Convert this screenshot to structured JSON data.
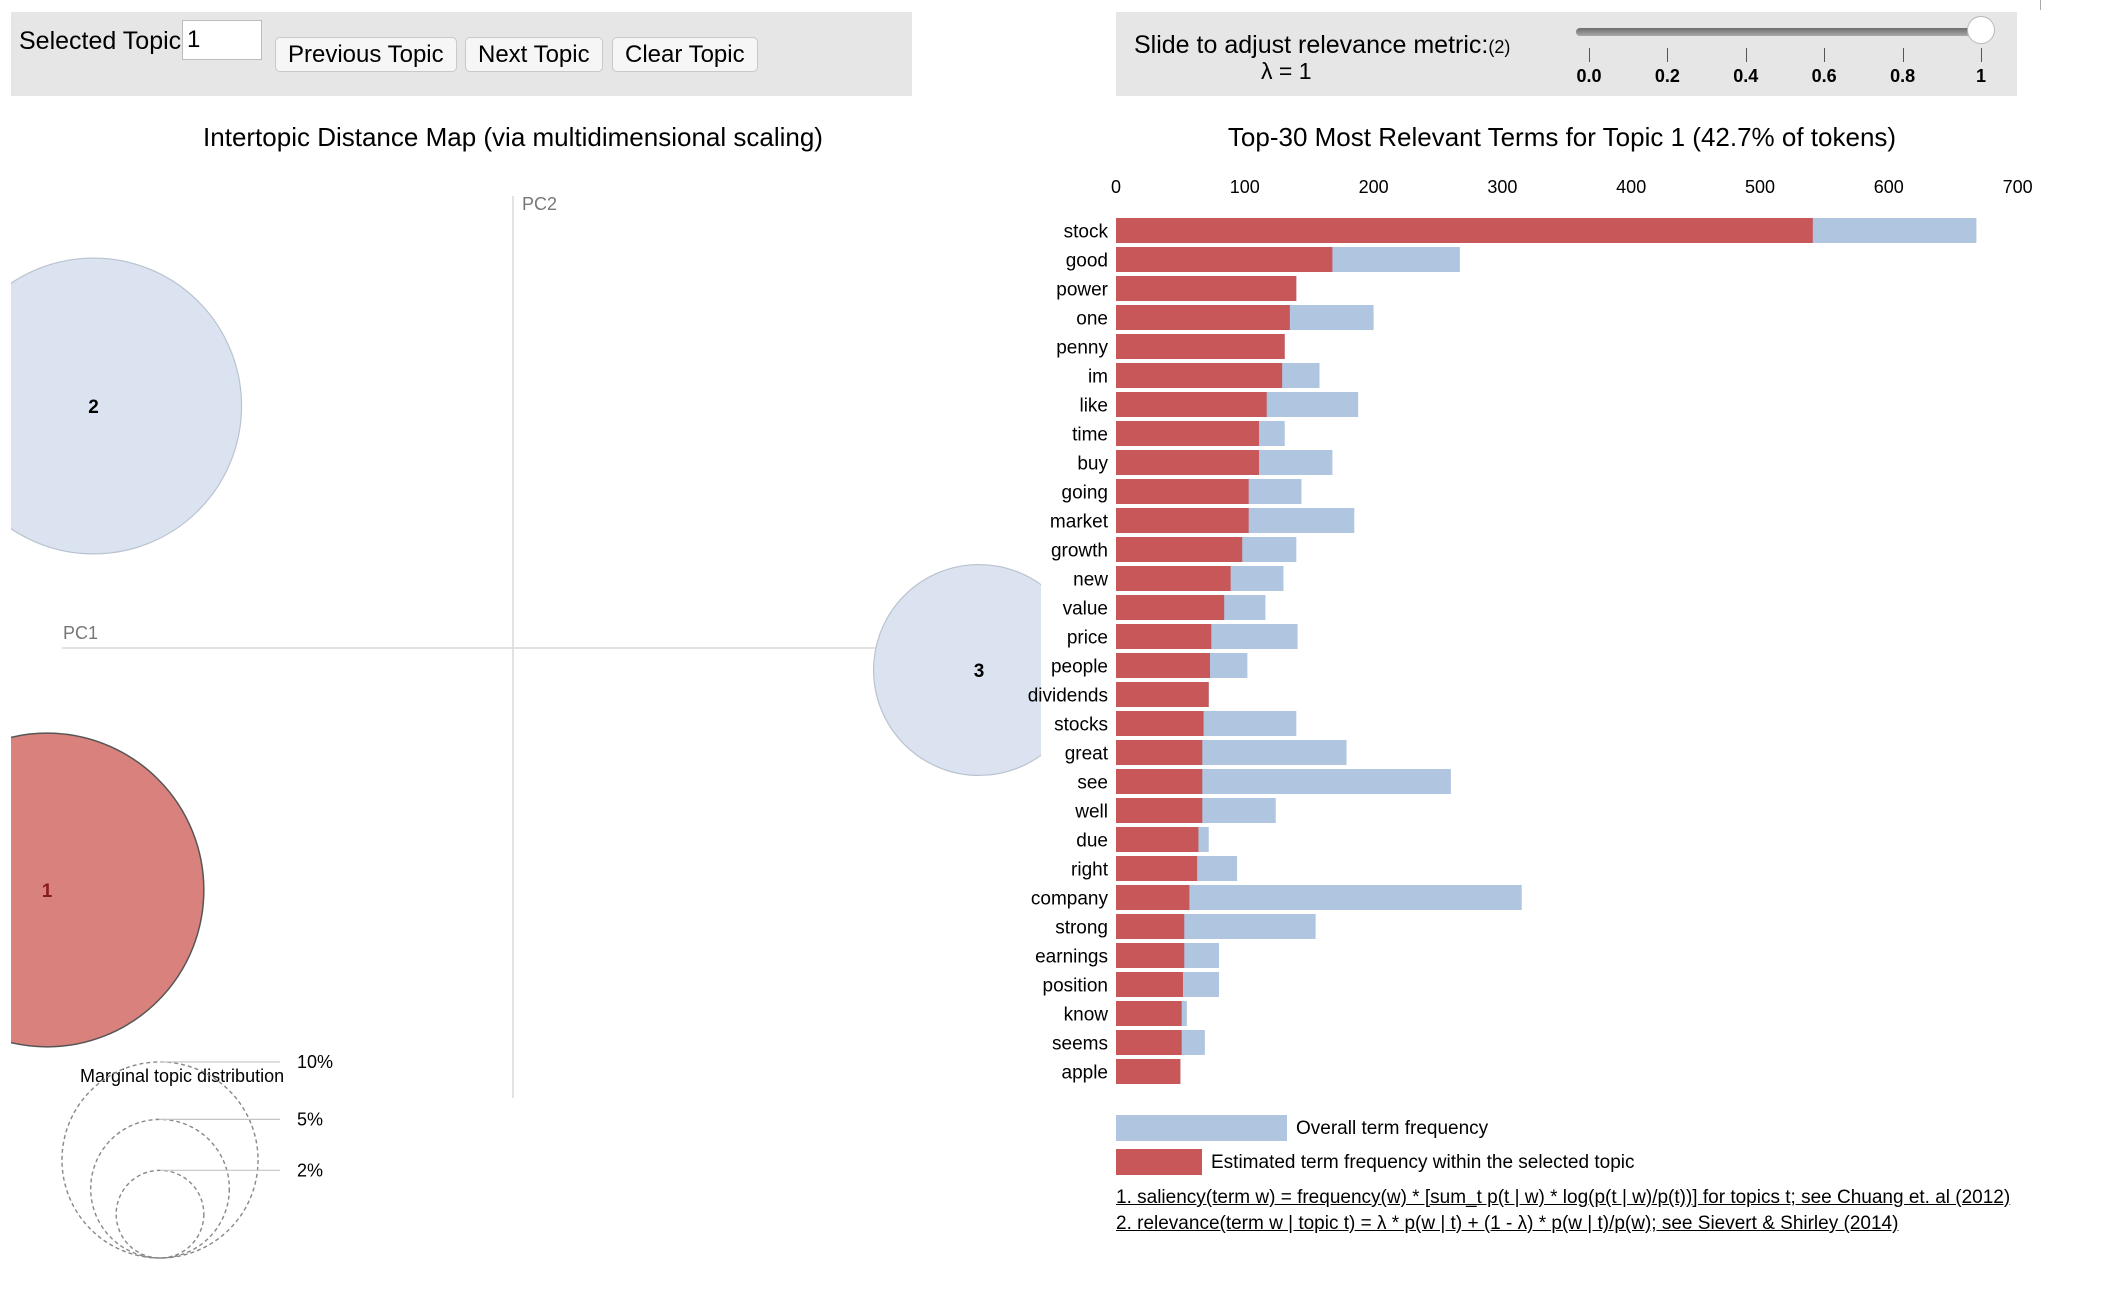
{
  "controls": {
    "selected_topic_label": "Selected Topic:",
    "selected_topic_value": "1",
    "previous_label": "Previous Topic",
    "next_label": "Next Topic",
    "clear_label": "Clear Topic",
    "slider_label": "Slide to adjust relevance metric:",
    "slider_footnote_ref": "(2)",
    "lambda_text": "λ = 1",
    "lambda_value": 1,
    "slider_ticks": [
      "0.0",
      "0.2",
      "0.4",
      "0.6",
      "0.8",
      "1"
    ]
  },
  "chart_data": [
    {
      "type": "scatter",
      "title": "Intertopic Distance Map (via multidimensional scaling)",
      "xlabel": "PC1",
      "ylabel": "PC2",
      "selected_topic": 1,
      "topics": [
        {
          "id": 1,
          "label": "1",
          "x": -0.2,
          "y": -0.11,
          "share": 42.7
        },
        {
          "id": 2,
          "label": "2",
          "x": -0.18,
          "y": 0.11,
          "share": 38.0
        },
        {
          "id": 3,
          "label": "3",
          "x": 0.2,
          "y": -0.01,
          "share": 19.3
        }
      ],
      "legend": {
        "title": "Marginal topic distribution",
        "entries": [
          {
            "label": "2%",
            "value": 2
          },
          {
            "label": "5%",
            "value": 5
          },
          {
            "label": "10%",
            "value": 10
          }
        ]
      },
      "colors": {
        "selected": "#d9827d",
        "unselected": "#dae3ef",
        "selected_label": "#8b1a1a"
      }
    },
    {
      "type": "bar",
      "title": "Top-30 Most Relevant Terms for Topic 1 (42.7% of tokens)",
      "xlim": [
        0,
        700
      ],
      "xticks": [
        "0",
        "100",
        "200",
        "300",
        "400",
        "500",
        "600",
        "700"
      ],
      "categories": [
        "stock",
        "good",
        "power",
        "one",
        "penny",
        "im",
        "like",
        "time",
        "buy",
        "going",
        "market",
        "growth",
        "new",
        "value",
        "price",
        "people",
        "dividends",
        "stocks",
        "great",
        "see",
        "well",
        "due",
        "right",
        "company",
        "strong",
        "earnings",
        "position",
        "know",
        "seems",
        "apple"
      ],
      "series": [
        {
          "name": "Overall term frequency",
          "color": "#b0c6e0",
          "values": [
            668,
            267,
            140,
            200,
            131,
            158,
            188,
            131,
            168,
            144,
            185,
            140,
            130,
            116,
            141,
            102,
            72,
            140,
            179,
            260,
            124,
            72,
            94,
            315,
            155,
            80,
            80,
            55,
            69,
            50
          ]
        },
        {
          "name": "Estimated term frequency within the selected topic",
          "color": "#c8575a",
          "values": [
            541,
            168,
            140,
            135,
            131,
            129,
            117,
            111,
            111,
            103,
            103,
            98,
            89,
            84,
            74,
            73,
            72,
            68,
            67,
            67,
            67,
            64,
            63,
            57,
            53,
            53,
            52,
            51,
            51,
            50
          ]
        }
      ]
    }
  ],
  "footnotes": [
    "1. saliency(term w) = frequency(w) * [sum_t p(t | w) * log(p(t | w)/p(t))] for topics t; see Chuang et. al (2012)",
    "2. relevance(term w | topic t) = λ * p(w | t) + (1 - λ) * p(w | t)/p(w); see Sievert & Shirley (2014)"
  ]
}
